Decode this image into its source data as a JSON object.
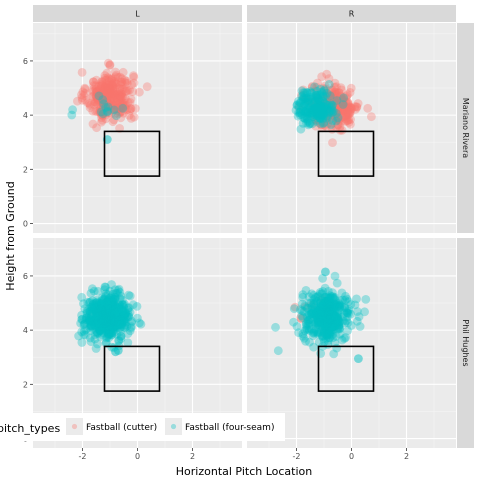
{
  "chart_data": {
    "type": "scatter",
    "title": "",
    "xlabel": "Horizontal Pitch Location",
    "ylabel": "Height from Ground",
    "xlim": [
      -3.8,
      3.8
    ],
    "ylim": [
      -0.35,
      7.4
    ],
    "x_ticks": [
      -2,
      0,
      2
    ],
    "y_ticks": [
      0,
      2,
      4,
      6
    ],
    "x_tick_labels": [
      "-2",
      "0",
      "2"
    ],
    "y_tick_labels": [
      "0",
      "2",
      "4",
      "6"
    ],
    "grid": true,
    "legend": {
      "title": "pitch_types",
      "placement": "bottom-left, overlapping the lower panels",
      "entries": [
        "Fastball (cutter)",
        "Fastball (four-seam)"
      ]
    },
    "series_colors": {
      "Fastball (cutter)": "#F8766D",
      "Fastball (four-seam)": "#00BFC4"
    },
    "column_facets": [
      "L",
      "R"
    ],
    "row_facets": [
      "Mariano Rivera",
      "Phil Hughes"
    ],
    "strike_zone": {
      "x": [
        -1.2,
        0.8
      ],
      "y": [
        1.75,
        3.4
      ]
    },
    "panels": [
      {
        "row": "Mariano Rivera",
        "col": "L",
        "clusters": [
          {
            "series": "Fastball (cutter)",
            "n": 300,
            "center": [
              -1.0,
              4.7
            ],
            "spread": [
              0.42,
              0.45
            ]
          },
          {
            "series": "Fastball (four-seam)",
            "n": 14,
            "center": [
              -1.1,
              4.3
            ],
            "spread": [
              0.5,
              0.35
            ]
          }
        ],
        "extra_points": [
          {
            "series": "Fastball (four-seam)",
            "x": -1.1,
            "y": 3.1
          }
        ]
      },
      {
        "row": "Mariano Rivera",
        "col": "R",
        "clusters": [
          {
            "series": "Fastball (cutter)",
            "n": 260,
            "center": [
              -0.6,
              4.3
            ],
            "spread": [
              0.45,
              0.4
            ]
          },
          {
            "series": "Fastball (four-seam)",
            "n": 190,
            "center": [
              -1.3,
              4.3
            ],
            "spread": [
              0.35,
              0.33
            ]
          }
        ],
        "extra_points": []
      },
      {
        "row": "Phil Hughes",
        "col": "L",
        "clusters": [
          {
            "series": "Fastball (four-seam)",
            "n": 480,
            "center": [
              -1.1,
              4.5
            ],
            "spread": [
              0.42,
              0.42
            ]
          }
        ],
        "extra_points": [
          {
            "series": "Fastball (four-seam)",
            "x": -0.8,
            "y": 3.2
          },
          {
            "series": "Fastball (four-seam)",
            "x": -0.7,
            "y": 3.25
          }
        ]
      },
      {
        "row": "Phil Hughes",
        "col": "R",
        "clusters": [
          {
            "series": "Fastball (cutter)",
            "n": 7,
            "center": [
              -1.4,
              4.9
            ],
            "spread": [
              0.45,
              0.3
            ]
          },
          {
            "series": "Fastball (four-seam)",
            "n": 380,
            "center": [
              -0.9,
              4.5
            ],
            "spread": [
              0.45,
              0.45
            ]
          }
        ],
        "extra_points": [
          {
            "series": "Fastball (four-seam)",
            "x": -0.95,
            "y": 6.15
          },
          {
            "series": "Fastball (four-seam)",
            "x": 0.25,
            "y": 2.95
          }
        ]
      }
    ]
  }
}
